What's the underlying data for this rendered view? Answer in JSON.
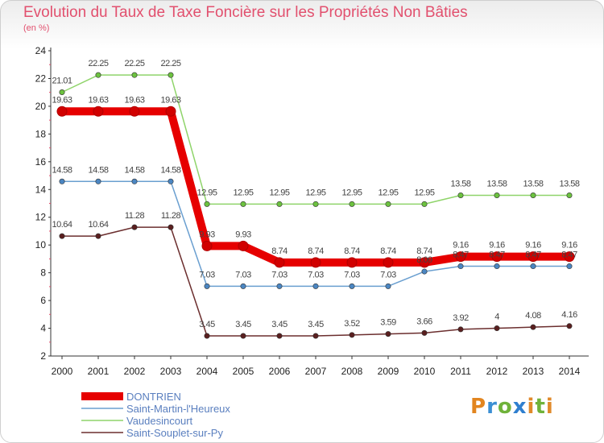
{
  "title": "Evolution du Taux de Taxe Foncière sur les Propriétés Non Bâties",
  "unit": "(en %)",
  "logo": "Proxiti",
  "chart_data": {
    "type": "line",
    "title": "Evolution du Taux de Taxe Foncière sur les Propriétés Non Bâties",
    "ylabel": "(en %)",
    "xlabel": "",
    "ylim": [
      2,
      24
    ],
    "yticks": [
      2,
      4,
      6,
      8,
      10,
      12,
      14,
      16,
      18,
      20,
      22,
      24
    ],
    "grid": false,
    "legend": "bottom-left",
    "x": [
      "2000",
      "2001",
      "2002",
      "2003",
      "2004",
      "2005",
      "2006",
      "2007",
      "2008",
      "2009",
      "2010",
      "2011",
      "2012",
      "2013",
      "2014"
    ],
    "series": [
      {
        "name": "Vaudesincourt",
        "color": "#8fd46a",
        "point": "#6cc23f",
        "values": [
          21.01,
          22.25,
          22.25,
          22.25,
          12.95,
          12.95,
          12.95,
          12.95,
          12.95,
          12.95,
          12.95,
          13.58,
          13.58,
          13.58,
          13.58
        ],
        "labels": [
          "21.01",
          "22.25",
          "22.25",
          "22.25",
          "12.95",
          "12.95",
          "12.95",
          "12.95",
          "12.95",
          "12.95",
          "12.95",
          "13.58",
          "13.58",
          "13.58",
          "13.58"
        ]
      },
      {
        "name": "Saint-Martin-l'Heureux",
        "color": "#6a9fd0",
        "point": "#4b86c2",
        "values": [
          14.58,
          14.58,
          14.58,
          14.58,
          7.03,
          7.03,
          7.03,
          7.03,
          7.03,
          7.03,
          8.09,
          8.47,
          8.47,
          8.47,
          8.47
        ],
        "labels": [
          "14.58",
          "14.58",
          "14.58",
          "14.58",
          "7.03",
          "7.03",
          "7.03",
          "7.03",
          "7.03",
          "7.03",
          "8.09",
          "8.47",
          "8.47",
          "8.47",
          "8.47"
        ]
      },
      {
        "name": "Saint-Souplet-sur-Py",
        "color": "#6b2e2e",
        "point": "#5a1f1f",
        "values": [
          10.64,
          10.64,
          11.28,
          11.28,
          3.45,
          3.45,
          3.45,
          3.45,
          3.52,
          3.59,
          3.66,
          3.92,
          4,
          4.08,
          4.16
        ],
        "labels": [
          "10.64",
          "10.64",
          "11.28",
          "11.28",
          "3.45",
          "3.45",
          "3.45",
          "3.45",
          "3.52",
          "3.59",
          "3.66",
          "3.92",
          "4",
          "4.08",
          "4.16"
        ]
      },
      {
        "name": "DONTRIEN",
        "color": "#e60000",
        "point": "#d10000",
        "values": [
          19.63,
          19.63,
          19.63,
          19.63,
          9.93,
          9.93,
          8.74,
          8.74,
          8.74,
          8.74,
          8.74,
          9.16,
          9.16,
          9.16,
          9.16
        ],
        "labels": [
          "19.63",
          "19.63",
          "19.63",
          "19.63",
          "9.93",
          "9.93",
          "8.74",
          "8.74",
          "8.74",
          "8.74",
          "8.74",
          "9.16",
          "9.16",
          "9.16",
          "9.16"
        ]
      }
    ]
  },
  "legend": [
    {
      "name": "DONTRIEN",
      "color": "#e60000",
      "weight": "thick"
    },
    {
      "name": "Saint-Martin-l'Heureux",
      "color": "#6a9fd0",
      "weight": "thin"
    },
    {
      "name": "Vaudesincourt",
      "color": "#8fd46a",
      "weight": "thin"
    },
    {
      "name": "Saint-Souplet-sur-Py",
      "color": "#6b2e2e",
      "weight": "thin"
    }
  ]
}
